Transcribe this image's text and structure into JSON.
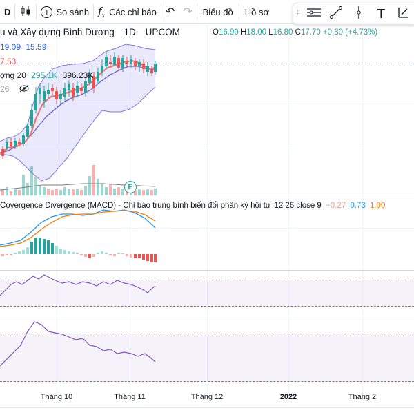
{
  "toolbar": {
    "interval": "D",
    "compare": "So sánh",
    "indicators": "Các chỉ báo",
    "chart_type": "Biểu đồ",
    "profile": "Hồ sơ"
  },
  "symbol": {
    "name": "u và Xây dựng Bình Dương",
    "interval": "1D",
    "exchange": "UPCOM",
    "o_label": "O",
    "o": "16.90",
    "h_label": "H",
    "h": "18.00",
    "l_label": "L",
    "l": "16.80",
    "c_label": "C",
    "c": "17.70",
    "change": "+0.80 (+4.73%)"
  },
  "bb_values": {
    "v1": "19.09",
    "v2": "15.59"
  },
  "price_tag": "7.53",
  "volume_legend": {
    "label": "ợng 20",
    "v1": "295.1K",
    "v2": "396.23K"
  },
  "bb_period": "26",
  "macd_legend": {
    "title": "Covergence Divergence (MACD) - Chỉ báo trung bình biến đổi phân kỳ hội tụ",
    "params": "12 26 close 9",
    "hist": "−0.27",
    "macd": "0.73",
    "signal": "1.00"
  },
  "time_axis": [
    "Tháng 10",
    "Tháng 11",
    "Tháng 12",
    "2022",
    "Tháng 2"
  ],
  "earnings_marker": "E",
  "colors": {
    "up": "#26a69a",
    "down": "#ef5350",
    "bb_band": "#b9b6f0",
    "ma": "#e57373",
    "macd": "#2196f3",
    "signal": "#f57c00",
    "osc": "#7e57c2"
  }
}
